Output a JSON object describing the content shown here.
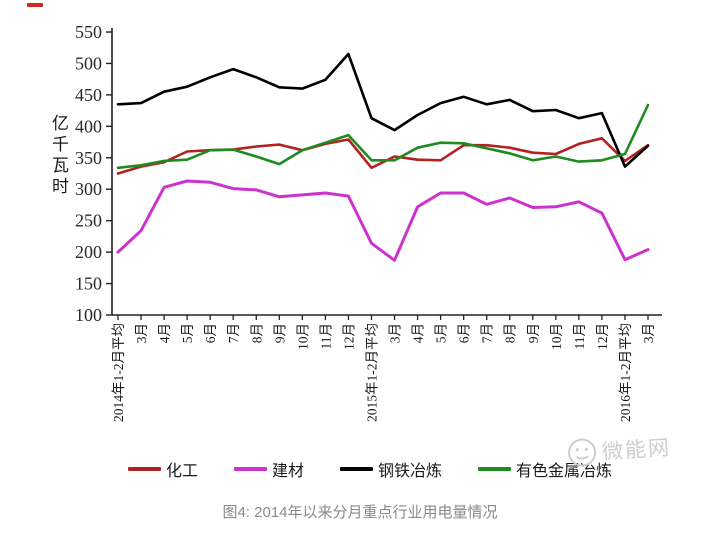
{
  "figure": {
    "caption": "图4: 2014年以来分月重点行业用电量情况",
    "watermark": {
      "text": "微能网"
    }
  },
  "chart_data": {
    "type": "line",
    "title": "",
    "xlabel": "",
    "ylabel": "亿千瓦时",
    "ylim": [
      100,
      550
    ],
    "y_ticks": [
      550,
      500,
      450,
      400,
      350,
      300,
      250,
      200,
      150,
      100
    ],
    "grid": false,
    "legend_position": "bottom",
    "categories": [
      "2014年1-2月平均",
      "3月",
      "4月",
      "5月",
      "6月",
      "7月",
      "8月",
      "9月",
      "10月",
      "11月",
      "12月",
      "2015年1-2月平均",
      "3月",
      "4月",
      "5月",
      "6月",
      "7月",
      "8月",
      "9月",
      "10月",
      "11月",
      "12月",
      "2016年1-2月平均",
      "3月"
    ],
    "series": [
      {
        "name": "化工",
        "color": "#B22222",
        "values": [
          325,
          336,
          343,
          360,
          362,
          363,
          368,
          371,
          362,
          372,
          379,
          334,
          352,
          347,
          346,
          370,
          370,
          366,
          358,
          356,
          372,
          381,
          345,
          370
        ]
      },
      {
        "name": "建材",
        "color": "#CC33CC",
        "values": [
          200,
          234,
          303,
          313,
          311,
          301,
          299,
          288,
          291,
          294,
          289,
          214,
          187,
          272,
          294,
          294,
          276,
          286,
          271,
          272,
          280,
          262,
          188,
          204
        ]
      },
      {
        "name": "钢铁冶炼",
        "color": "#000000",
        "values": [
          435,
          437,
          455,
          463,
          478,
          491,
          478,
          462,
          460,
          474,
          515,
          413,
          394,
          418,
          437,
          447,
          435,
          442,
          424,
          426,
          413,
          421,
          336,
          369
        ]
      },
      {
        "name": "有色金属冶炼",
        "color": "#1F8B1F",
        "values": [
          334,
          338,
          345,
          347,
          362,
          363,
          352,
          340,
          362,
          374,
          386,
          346,
          346,
          366,
          374,
          373,
          365,
          357,
          346,
          352,
          344,
          346,
          356,
          434
        ]
      }
    ]
  }
}
